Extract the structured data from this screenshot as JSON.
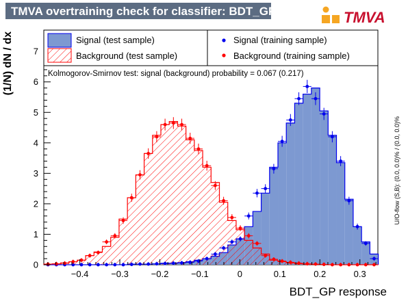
{
  "header": {
    "title": "TMVA overtraining check for classifier: BDT_GP",
    "logo_text": "TMVA"
  },
  "colors": {
    "title_bg": "#5c6c82",
    "signal_fill": "#7d99d1",
    "signal_line": "#0000ee",
    "background_hatch": "#ff0000",
    "signal_training_marker": "#0000ee",
    "background_training_marker": "#ff0000"
  },
  "chart_data": {
    "type": "histogram",
    "xlabel": "BDT_GP response",
    "ylabel": "(1/N) dN / dx",
    "xlim": [
      -0.49,
      0.345
    ],
    "ylim": [
      0,
      7.7
    ],
    "x_ticks": [
      -0.4,
      -0.3,
      -0.2,
      -0.1,
      0,
      0.1,
      0.2,
      0.3
    ],
    "x_tick_labels": [
      "−0.4",
      "−0.3",
      "−0.2",
      "−0.1",
      "0",
      "0.1",
      "0.2",
      "0.3"
    ],
    "y_ticks": [
      0,
      1,
      2,
      3,
      4,
      5,
      6,
      7
    ],
    "y_tick_labels": [
      "0",
      "1",
      "2",
      "3",
      "4",
      "5",
      "6",
      "7"
    ],
    "bin_edges_start": -0.49,
    "bin_width": 0.0209,
    "series": [
      {
        "name": "Signal (test sample)",
        "style": "filled-histogram",
        "values": [
          0,
          0,
          0,
          0,
          0,
          0,
          0,
          0,
          0,
          0,
          0.02,
          0.02,
          0.02,
          0.03,
          0.05,
          0.05,
          0.07,
          0.1,
          0.15,
          0.2,
          0.28,
          0.4,
          0.65,
          0.85,
          1.25,
          1.75,
          2.35,
          3.2,
          4.0,
          4.65,
          5.3,
          5.6,
          5.8,
          5.05,
          4.25,
          3.35,
          2.15,
          1.25,
          0.75,
          0.35
        ]
      },
      {
        "name": "Background (test sample)",
        "style": "hatched-histogram",
        "values": [
          0.02,
          0.03,
          0.06,
          0.1,
          0.15,
          0.3,
          0.42,
          0.6,
          0.9,
          1.5,
          2.2,
          2.95,
          3.65,
          4.25,
          4.6,
          4.7,
          4.55,
          4.1,
          3.75,
          3.2,
          2.7,
          2.05,
          1.45,
          1.15,
          0.8,
          0.55,
          0.35,
          0.15,
          0.1,
          0.06,
          0.03,
          0.02,
          0.01,
          0.01,
          0,
          0,
          0,
          0,
          0,
          0
        ]
      },
      {
        "name": "Signal (training sample)",
        "style": "markers",
        "values": [
          0,
          0,
          0,
          0,
          0,
          0,
          0,
          0,
          0,
          0,
          0.01,
          0.02,
          0.02,
          0.03,
          0.04,
          0.05,
          0.06,
          0.08,
          0.12,
          0.2,
          0.35,
          0.55,
          0.75,
          0.85,
          1.6,
          2.35,
          2.5,
          3.15,
          4.05,
          4.75,
          5.45,
          5.85,
          5.45,
          4.95,
          4.2,
          3.4,
          2.1,
          1.25,
          0.7,
          0.2
        ]
      },
      {
        "name": "Background (training sample)",
        "style": "markers",
        "values": [
          0.02,
          0.03,
          0.05,
          0.1,
          0.15,
          0.3,
          0.4,
          0.75,
          0.95,
          1.45,
          2.2,
          2.95,
          3.65,
          4.2,
          4.6,
          4.65,
          4.6,
          4.15,
          3.8,
          3.25,
          2.6,
          2.1,
          1.55,
          1.2,
          0.95,
          0.7,
          0.3,
          0.18,
          0.12,
          0.08,
          0.05,
          0.03,
          0.02,
          0.01,
          0,
          0,
          0,
          0,
          0,
          0
        ]
      }
    ],
    "legend": {
      "placement": "top",
      "entries": [
        "Signal (test sample)",
        "Signal (training sample)",
        "Background (test sample)",
        "Background (training sample)"
      ]
    },
    "annotation": "Kolmogorov-Smirnov test: signal (background) probability = 0.067 (0.217)",
    "overflow_label": "U/O-flow (S,B): (0.0, 0.0)% / (0.0, 0.0)%"
  }
}
